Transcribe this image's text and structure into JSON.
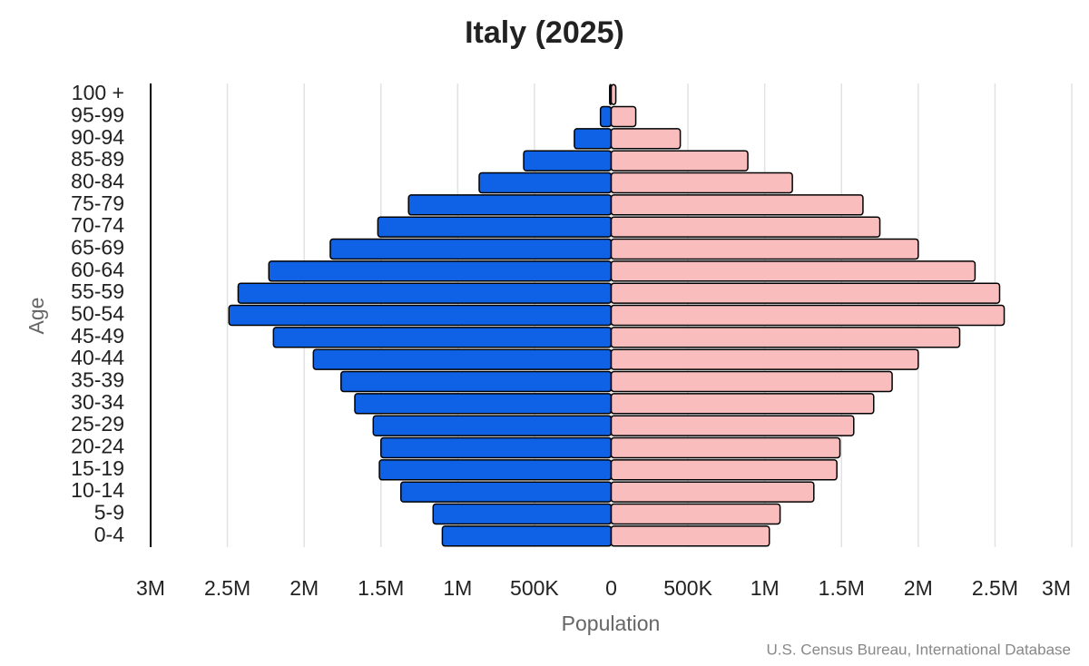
{
  "chart_data": {
    "type": "pyramid",
    "title": "Italy (2025)",
    "x_label": "Population",
    "y_label": "Age",
    "source": "U.S. Census Bureau, International Database",
    "categories": [
      "0-4",
      "5-9",
      "10-14",
      "15-19",
      "20-24",
      "25-29",
      "30-34",
      "35-39",
      "40-44",
      "45-49",
      "50-54",
      "55-59",
      "60-64",
      "65-69",
      "70-74",
      "75-79",
      "80-84",
      "85-89",
      "90-94",
      "95-99",
      "100 +"
    ],
    "series": [
      {
        "side": "left",
        "color": "#0f62e6",
        "values": [
          1100000,
          1160000,
          1370000,
          1510000,
          1500000,
          1550000,
          1670000,
          1760000,
          1940000,
          2200000,
          2490000,
          2430000,
          2230000,
          1830000,
          1520000,
          1320000,
          860000,
          570000,
          240000,
          70000,
          10000
        ]
      },
      {
        "side": "right",
        "color": "#f9bdbd",
        "values": [
          1030000,
          1100000,
          1320000,
          1470000,
          1490000,
          1580000,
          1710000,
          1830000,
          2000000,
          2270000,
          2560000,
          2530000,
          2370000,
          2000000,
          1750000,
          1640000,
          1180000,
          890000,
          450000,
          160000,
          30000
        ]
      }
    ],
    "xlim": [
      -3000000,
      3000000
    ],
    "xticks": [
      {
        "value": -3000000,
        "label": "3M"
      },
      {
        "value": -2500000,
        "label": "2.5M"
      },
      {
        "value": -2000000,
        "label": "2M"
      },
      {
        "value": -1500000,
        "label": "1.5M"
      },
      {
        "value": -1000000,
        "label": "1M"
      },
      {
        "value": -500000,
        "label": "500K"
      },
      0,
      {
        "value": 500000,
        "label": "500K"
      },
      {
        "value": 1000000,
        "label": "1M"
      },
      {
        "value": 1500000,
        "label": "1.5M"
      },
      {
        "value": 2000000,
        "label": "2M"
      },
      {
        "value": 2500000,
        "label": "2.5M"
      },
      {
        "value": 3000000,
        "label": "3M"
      }
    ],
    "grid": true
  }
}
